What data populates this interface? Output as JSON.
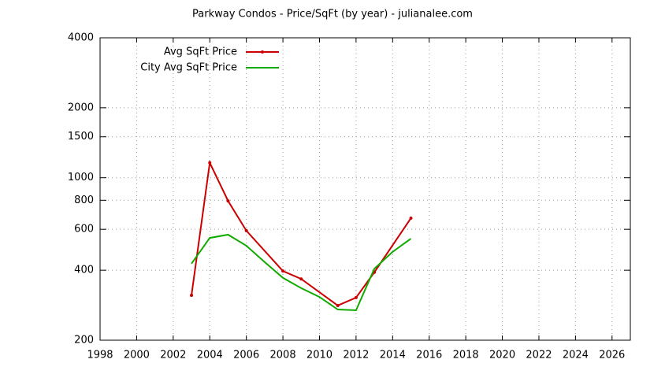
{
  "chart_data": {
    "type": "line",
    "title": "Parkway Condos - Price/SqFt (by year) - julianalee.com",
    "xlim": [
      1998,
      2027
    ],
    "xticks": [
      1998,
      2000,
      2002,
      2004,
      2006,
      2008,
      2010,
      2012,
      2014,
      2016,
      2018,
      2020,
      2022,
      2024,
      2026
    ],
    "ylim": [
      200,
      4000
    ],
    "yticks": [
      200,
      400,
      600,
      800,
      1000,
      1500,
      2000,
      4000
    ],
    "log_y": true,
    "grid": true,
    "legend": "top-left",
    "series": [
      {
        "name": "Avg SqFt Price",
        "color": "#cc0000",
        "markers": true,
        "x": [
          2003,
          2004,
          2005,
          2006,
          2008,
          2009,
          2011,
          2012,
          2013,
          2015
        ],
        "values": [
          312,
          1160,
          795,
          592,
          397,
          367,
          282,
          305,
          392,
          670
        ]
      },
      {
        "name": "City Avg SqFt Price",
        "color": "#11aa00",
        "markers": false,
        "x": [
          2003,
          2004,
          2005,
          2006,
          2007,
          2008,
          2009,
          2010,
          2011,
          2012,
          2013,
          2014,
          2015
        ],
        "values": [
          427,
          551,
          569,
          510,
          434,
          371,
          335,
          307,
          271,
          269,
          406,
          480,
          547
        ]
      }
    ]
  }
}
